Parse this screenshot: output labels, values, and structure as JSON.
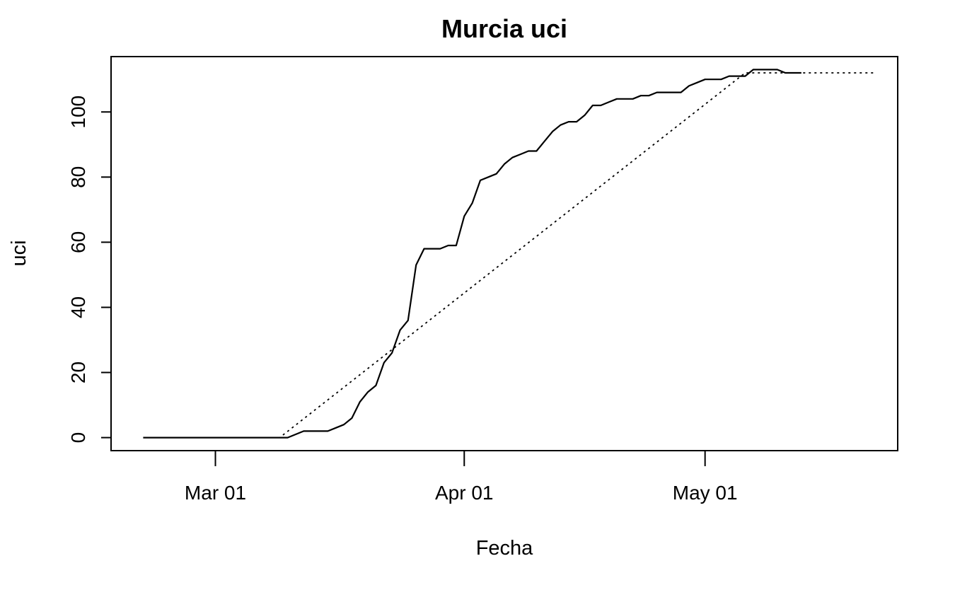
{
  "chart_data": {
    "type": "line",
    "title": "Murcia uci",
    "xlabel": "Fecha",
    "ylabel": "uci",
    "x_axis": {
      "type": "date",
      "xlim": [
        "2020-02-17",
        "2020-05-25"
      ],
      "ticks": [
        {
          "date": "2020-03-01",
          "label": "Mar 01"
        },
        {
          "date": "2020-04-01",
          "label": "Apr 01"
        },
        {
          "date": "2020-05-01",
          "label": "May 01"
        }
      ]
    },
    "y_axis": {
      "ylim": [
        -4,
        117
      ],
      "ticks": [
        0,
        20,
        40,
        60,
        80,
        100
      ]
    },
    "grid": false,
    "legend": "none",
    "series": [
      {
        "style": "solid",
        "color": "#000000",
        "x": [
          "2020-02-21",
          "2020-03-10",
          "2020-03-12",
          "2020-03-15",
          "2020-03-16",
          "2020-03-17",
          "2020-03-18",
          "2020-03-19",
          "2020-03-20",
          "2020-03-21",
          "2020-03-22",
          "2020-03-23",
          "2020-03-24",
          "2020-03-25",
          "2020-03-26",
          "2020-03-27",
          "2020-03-28",
          "2020-03-29",
          "2020-03-30",
          "2020-03-31",
          "2020-04-01",
          "2020-04-02",
          "2020-04-03",
          "2020-04-04",
          "2020-04-05",
          "2020-04-06",
          "2020-04-07",
          "2020-04-08",
          "2020-04-09",
          "2020-04-10",
          "2020-04-11",
          "2020-04-12",
          "2020-04-13",
          "2020-04-14",
          "2020-04-15",
          "2020-04-16",
          "2020-04-17",
          "2020-04-18",
          "2020-04-19",
          "2020-04-20",
          "2020-04-21",
          "2020-04-22",
          "2020-04-23",
          "2020-04-24",
          "2020-04-25",
          "2020-04-26",
          "2020-04-27",
          "2020-04-28",
          "2020-04-29",
          "2020-04-30",
          "2020-05-01",
          "2020-05-02",
          "2020-05-03",
          "2020-05-04",
          "2020-05-05",
          "2020-05-06",
          "2020-05-07",
          "2020-05-08",
          "2020-05-09",
          "2020-05-10",
          "2020-05-11",
          "2020-05-12",
          "2020-05-13"
        ],
        "y": [
          0,
          0,
          2,
          2,
          3,
          4,
          6,
          11,
          14,
          16,
          23,
          26,
          33,
          36,
          53,
          58,
          58,
          58,
          59,
          59,
          68,
          72,
          79,
          80,
          81,
          84,
          86,
          87,
          88,
          88,
          91,
          94,
          96,
          97,
          97,
          99,
          102,
          102,
          103,
          104,
          104,
          104,
          105,
          105,
          106,
          106,
          106,
          106,
          108,
          109,
          110,
          110,
          110,
          111,
          111,
          111,
          113,
          113,
          113,
          113,
          112,
          112,
          112
        ]
      },
      {
        "style": "dotted",
        "color": "#000000",
        "x": [
          "2020-03-06",
          "2020-03-09",
          "2020-05-06",
          "2020-05-11",
          "2020-05-22"
        ],
        "y": [
          0,
          0,
          112,
          112,
          112
        ]
      }
    ]
  }
}
